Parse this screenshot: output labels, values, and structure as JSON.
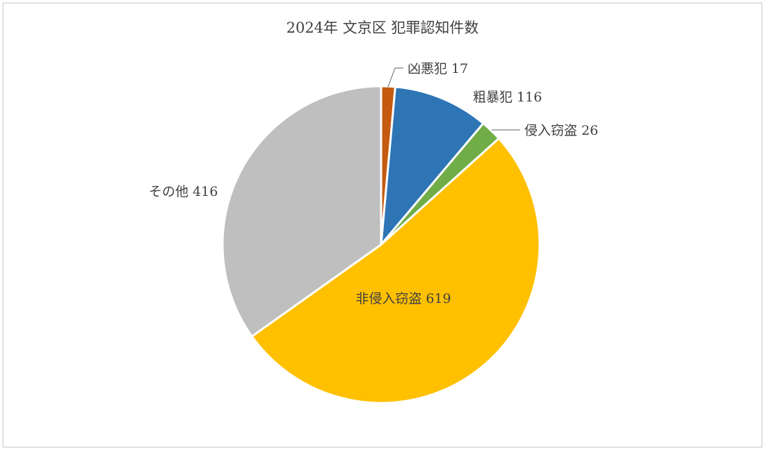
{
  "chart_data": {
    "type": "pie",
    "title": "2024年 文京区 犯罪認知件数",
    "slices": [
      {
        "name": "凶悪犯",
        "value": 17,
        "label": "凶悪犯 17",
        "color": "#C55A11"
      },
      {
        "name": "粗暴犯",
        "value": 116,
        "label": "粗暴犯 116",
        "color": "#2E75B6"
      },
      {
        "name": "侵入窃盗",
        "value": 26,
        "label": "侵入窃盗 26",
        "color": "#70AD47"
      },
      {
        "name": "非侵入窃盗",
        "value": 619,
        "label": "非侵入窃盗 619",
        "color": "#FFC000"
      },
      {
        "name": "その他",
        "value": 416,
        "label": "その他 416",
        "color": "#BFBFBF"
      }
    ],
    "start_angle": "12 o'clock",
    "direction": "clockwise",
    "legend": "none"
  }
}
